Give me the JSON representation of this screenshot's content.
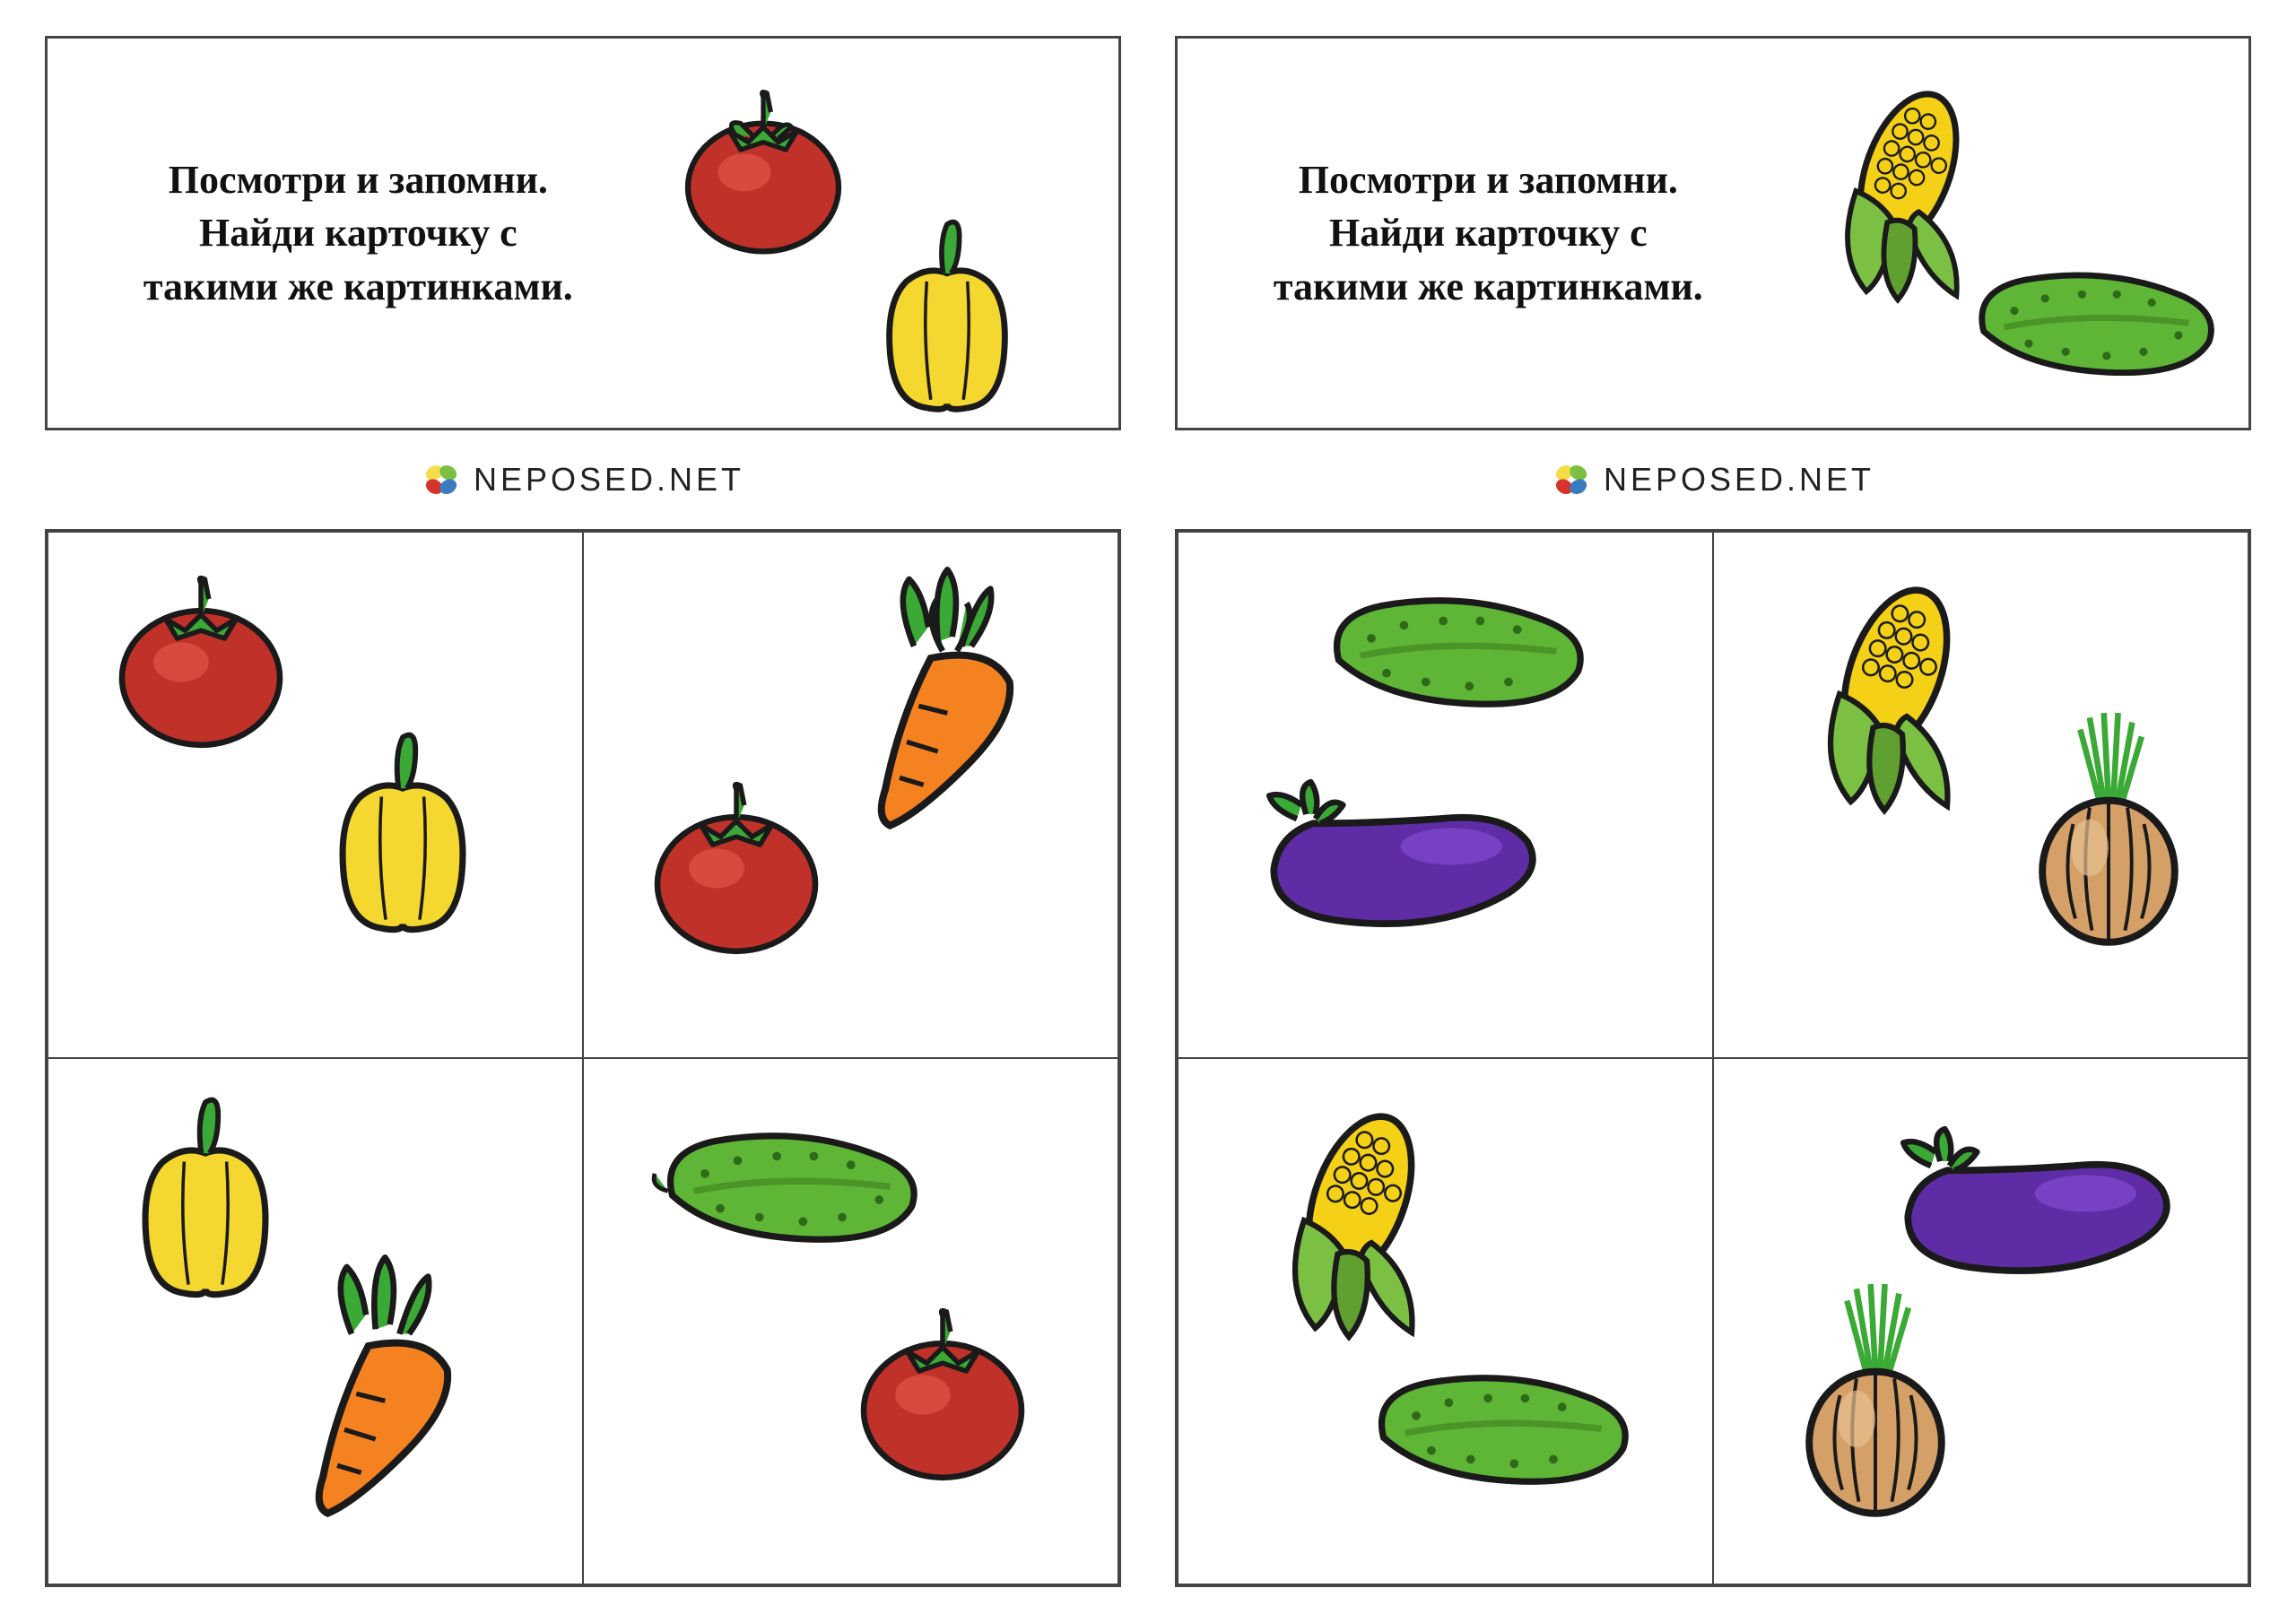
{
  "instruction_text": "Посмотри и запомни.\nНайди карточку с\nтакими же картинками.",
  "brand_text": "NEPOSED.NET",
  "logo_colors": {
    "tl": "#f5dc4b",
    "tr": "#7bc043",
    "bl": "#d6332c",
    "br": "#3a7bbf"
  },
  "colors": {
    "tomato_body": "#c0312a",
    "tomato_light": "#d84a40",
    "tomato_leaf": "#3aa935",
    "pepper_body": "#f4d830",
    "pepper_shadow": "#e0c020",
    "pepper_stem": "#3aa935",
    "carrot_body": "#f58220",
    "carrot_leaf": "#3aa935",
    "cucumber_body": "#5fb536",
    "cucumber_dark": "#4a9428",
    "cucumber_dot": "#2d6b18",
    "corn_kernel": "#f4d016",
    "corn_husk": "#7bc043",
    "corn_husk_dark": "#5fa030",
    "eggplant_body": "#5e2ca5",
    "eggplant_light": "#7840c4",
    "eggplant_stem": "#3aa935",
    "onion_body": "#d4a068",
    "onion_light": "#e8c090",
    "onion_sprout": "#3aa935",
    "outline": "#1a1a1a"
  },
  "panels": [
    {
      "top_vegetables": [
        "tomato",
        "pepper"
      ],
      "cells": [
        [
          "tomato",
          "pepper"
        ],
        [
          "carrot",
          "tomato"
        ],
        [
          "pepper",
          "carrot"
        ],
        [
          "cucumber",
          "tomato"
        ]
      ]
    },
    {
      "top_vegetables": [
        "corn",
        "cucumber"
      ],
      "cells": [
        [
          "cucumber",
          "eggplant"
        ],
        [
          "corn",
          "onion"
        ],
        [
          "corn",
          "cucumber"
        ],
        [
          "eggplant",
          "onion"
        ]
      ]
    }
  ]
}
